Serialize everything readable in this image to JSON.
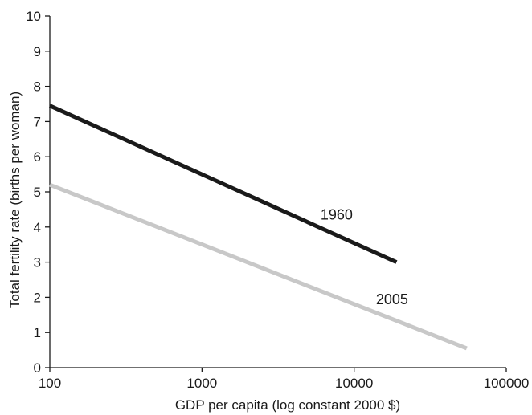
{
  "chart_data": {
    "type": "line",
    "title": "",
    "xlabel": "GDP per capita (log constant 2000 $)",
    "ylabel": "Total fertility rate (births per woman)",
    "x_scale": "log",
    "xlim": [
      100,
      100000
    ],
    "ylim": [
      0,
      10
    ],
    "x_ticks": [
      100,
      1000,
      10000,
      100000
    ],
    "x_tick_labels": [
      "100",
      "1000",
      "10000",
      "100000"
    ],
    "y_ticks": [
      0,
      1,
      2,
      3,
      4,
      5,
      6,
      7,
      8,
      9,
      10
    ],
    "y_tick_labels": [
      "0",
      "1",
      "2",
      "3",
      "4",
      "5",
      "6",
      "7",
      "8",
      "9",
      "10"
    ],
    "grid": false,
    "legend": "none",
    "series": [
      {
        "name": "1960",
        "color": "#1a1a1a",
        "points": [
          {
            "x": 100,
            "y": 7.45
          },
          {
            "x": 19000,
            "y": 3.0
          }
        ]
      },
      {
        "name": "2005",
        "color": "#c8c8c8",
        "points": [
          {
            "x": 100,
            "y": 5.2
          },
          {
            "x": 55000,
            "y": 0.55
          }
        ]
      }
    ]
  }
}
